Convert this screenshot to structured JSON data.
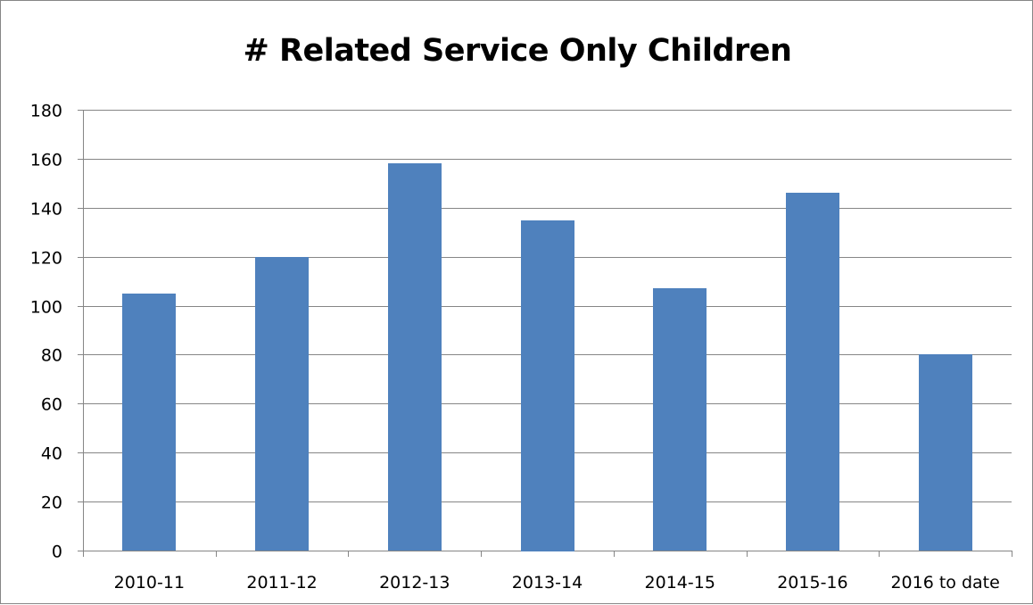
{
  "chart_data": {
    "type": "bar",
    "title": "# Related Service Only Children",
    "xlabel": "",
    "ylabel": "",
    "categories": [
      "2010-11",
      "2011-12",
      "2012-13",
      "2013-14",
      "2014-15",
      "2015-16",
      "2016 to date"
    ],
    "values": [
      105,
      120,
      158,
      135,
      107,
      146,
      80
    ],
    "ylim": [
      0,
      180
    ],
    "yticks": [
      0,
      20,
      40,
      60,
      80,
      100,
      120,
      140,
      160,
      180
    ],
    "grid": true,
    "legend": "none",
    "bar_color": "#4f81bd",
    "grid_color": "#868686"
  }
}
